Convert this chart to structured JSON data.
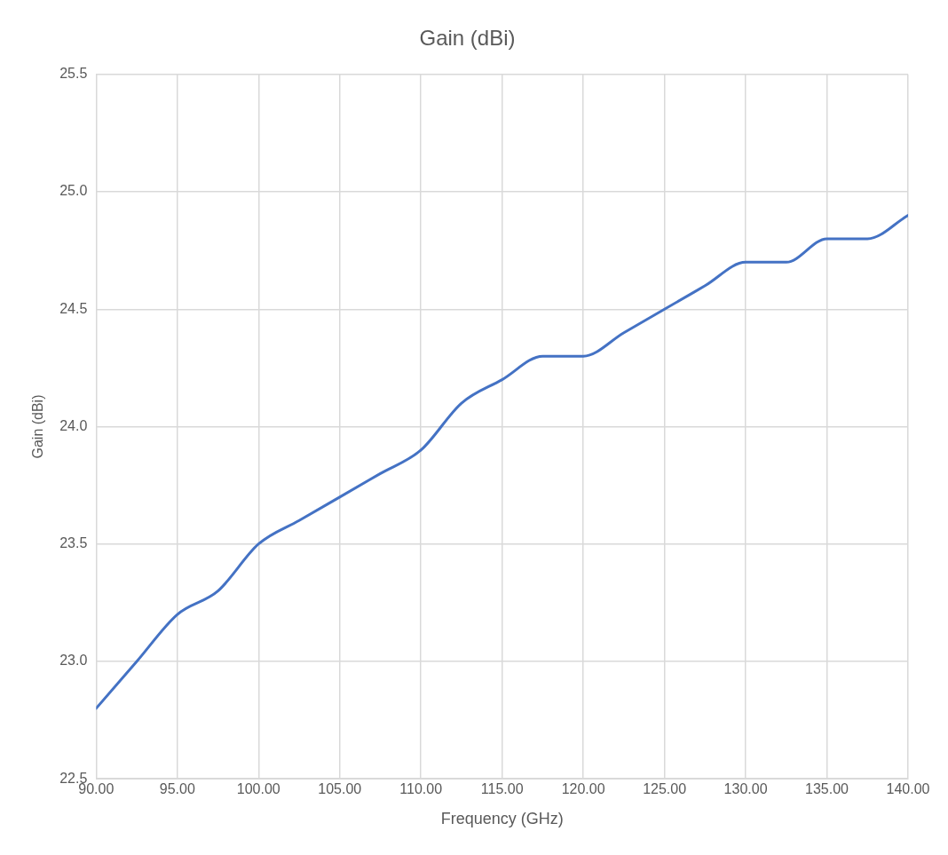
{
  "chart_data": {
    "type": "line",
    "title": "Gain (dBi)",
    "xlabel": "Frequency (GHz)",
    "ylabel": "Gain (dBi)",
    "series": [
      {
        "color": "#4472c4",
        "x": [
          90,
          92.5,
          95,
          97.5,
          100,
          102.5,
          105,
          107.5,
          110,
          112.5,
          115,
          117.5,
          120,
          122.5,
          125,
          127.5,
          130,
          132.5,
          135,
          137.5,
          140
        ],
        "values": [
          22.8,
          23.0,
          23.2,
          23.3,
          23.5,
          23.6,
          23.7,
          23.8,
          23.9,
          24.1,
          24.2,
          24.3,
          24.3,
          24.4,
          24.5,
          24.6,
          24.7,
          24.7,
          24.8,
          24.8,
          24.9
        ]
      }
    ],
    "xlim": [
      90,
      140
    ],
    "xticks": [
      {
        "value": 90,
        "label": "90.00"
      },
      {
        "value": 95,
        "label": "95.00"
      },
      {
        "value": 100,
        "label": "100.00"
      },
      {
        "value": 105,
        "label": "105.00"
      },
      {
        "value": 110,
        "label": "110.00"
      },
      {
        "value": 115,
        "label": "115.00"
      },
      {
        "value": 120,
        "label": "120.00"
      },
      {
        "value": 125,
        "label": "125.00"
      },
      {
        "value": 130,
        "label": "130.00"
      },
      {
        "value": 135,
        "label": "135.00"
      },
      {
        "value": 140,
        "label": "140.00"
      }
    ],
    "ylim": [
      22.5,
      25.5
    ],
    "yticks": [
      {
        "value": 22.5,
        "label": "22.5"
      },
      {
        "value": 23,
        "label": "23.0"
      },
      {
        "value": 23.5,
        "label": "23.5"
      },
      {
        "value": 24,
        "label": "24.0"
      },
      {
        "value": 24.5,
        "label": "24.5"
      },
      {
        "value": 25,
        "label": "25.0"
      },
      {
        "value": 25.5,
        "label": "25.5"
      }
    ],
    "grid": true,
    "legend": false,
    "marker": "none",
    "line_style": "solid"
  }
}
